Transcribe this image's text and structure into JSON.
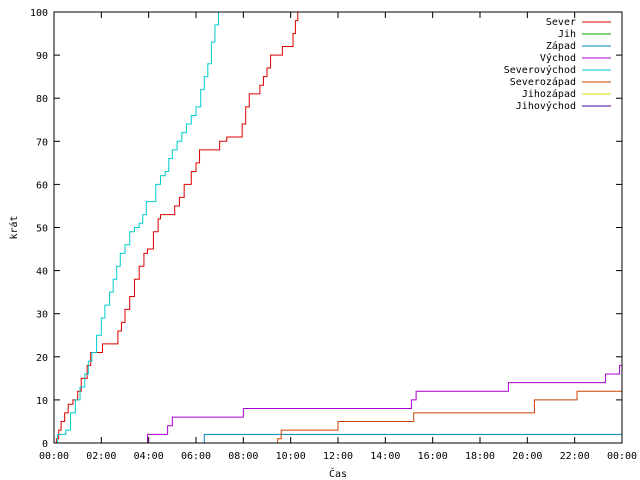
{
  "chart_data": {
    "type": "line",
    "title": "",
    "xlabel": "Čas",
    "ylabel": "krát",
    "xlim": [
      0,
      24
    ],
    "ylim": [
      0,
      100
    ],
    "grid": false,
    "legend_position": "top-right",
    "x_ticks": [
      0,
      2,
      4,
      6,
      8,
      10,
      12,
      14,
      16,
      18,
      20,
      22,
      24
    ],
    "x_tick_labels": [
      "00:00",
      "02:00",
      "04:00",
      "06:00",
      "08:00",
      "10:00",
      "12:00",
      "14:00",
      "16:00",
      "18:00",
      "20:00",
      "22:00",
      "00:00"
    ],
    "y_ticks": [
      0,
      10,
      20,
      30,
      40,
      50,
      60,
      70,
      80,
      90,
      100
    ],
    "y_tick_labels": [
      "0",
      "10",
      "20",
      "30",
      "40",
      "50",
      "60",
      "70",
      "80",
      "90",
      "100"
    ],
    "series": [
      {
        "name": "Sever",
        "color": "#dd0000",
        "points": [
          [
            0,
            0
          ],
          [
            0.1,
            1
          ],
          [
            0.2,
            3
          ],
          [
            0.3,
            5
          ],
          [
            0.45,
            7
          ],
          [
            0.6,
            9
          ],
          [
            0.8,
            10
          ],
          [
            1.0,
            12
          ],
          [
            1.15,
            15
          ],
          [
            1.4,
            18
          ],
          [
            1.55,
            21
          ],
          [
            2.0,
            21
          ],
          [
            2.05,
            23
          ],
          [
            2.6,
            23
          ],
          [
            2.7,
            26
          ],
          [
            2.85,
            28
          ],
          [
            3.0,
            31
          ],
          [
            3.2,
            34
          ],
          [
            3.4,
            38
          ],
          [
            3.6,
            41
          ],
          [
            3.8,
            44
          ],
          [
            3.95,
            45
          ],
          [
            4.2,
            49
          ],
          [
            4.4,
            52
          ],
          [
            4.5,
            53
          ],
          [
            5.0,
            53
          ],
          [
            5.1,
            55
          ],
          [
            5.3,
            57
          ],
          [
            5.5,
            60
          ],
          [
            5.8,
            63
          ],
          [
            6.0,
            65
          ],
          [
            6.15,
            68
          ],
          [
            6.9,
            68
          ],
          [
            7.0,
            70
          ],
          [
            7.3,
            71
          ],
          [
            7.8,
            71
          ],
          [
            7.95,
            74
          ],
          [
            8.1,
            78
          ],
          [
            8.25,
            81
          ],
          [
            8.6,
            81
          ],
          [
            8.7,
            83
          ],
          [
            8.85,
            85
          ],
          [
            9.0,
            87
          ],
          [
            9.15,
            90
          ],
          [
            9.6,
            90
          ],
          [
            9.65,
            92
          ],
          [
            10.0,
            92
          ],
          [
            10.1,
            95
          ],
          [
            10.2,
            98
          ],
          [
            10.3,
            100
          ]
        ]
      },
      {
        "name": "Jih",
        "color": "#00aa00",
        "points": []
      },
      {
        "name": "Západ",
        "color": "#0088bb",
        "points": [
          [
            0,
            0
          ],
          [
            6.35,
            0
          ],
          [
            6.35,
            2
          ],
          [
            24,
            2
          ]
        ]
      },
      {
        "name": "Východ",
        "color": "#aa00cc",
        "points": [
          [
            0,
            0
          ],
          [
            3.9,
            0
          ],
          [
            3.95,
            2
          ],
          [
            4.7,
            2
          ],
          [
            4.8,
            4
          ],
          [
            5.0,
            6
          ],
          [
            7.9,
            6
          ],
          [
            8.0,
            8
          ],
          [
            15.0,
            8
          ],
          [
            15.1,
            10
          ],
          [
            15.3,
            12
          ],
          [
            19.1,
            12
          ],
          [
            19.2,
            14
          ],
          [
            23.2,
            14
          ],
          [
            23.3,
            16
          ],
          [
            23.8,
            16
          ],
          [
            23.9,
            18
          ],
          [
            24,
            18
          ]
        ]
      },
      {
        "name": "Severovýchod",
        "color": "#00cccc",
        "points": [
          [
            0,
            0
          ],
          [
            0.15,
            2
          ],
          [
            0.5,
            3
          ],
          [
            0.7,
            7
          ],
          [
            0.9,
            10
          ],
          [
            1.1,
            13
          ],
          [
            1.3,
            16
          ],
          [
            1.45,
            19
          ],
          [
            1.6,
            21
          ],
          [
            1.8,
            25
          ],
          [
            2.0,
            29
          ],
          [
            2.15,
            32
          ],
          [
            2.35,
            35
          ],
          [
            2.5,
            38
          ],
          [
            2.65,
            41
          ],
          [
            2.8,
            44
          ],
          [
            3.0,
            46
          ],
          [
            3.2,
            49
          ],
          [
            3.4,
            50
          ],
          [
            3.6,
            51
          ],
          [
            3.75,
            53
          ],
          [
            3.9,
            56
          ],
          [
            4.1,
            56
          ],
          [
            4.3,
            60
          ],
          [
            4.5,
            62
          ],
          [
            4.7,
            63
          ],
          [
            4.85,
            66
          ],
          [
            5.0,
            68
          ],
          [
            5.2,
            70
          ],
          [
            5.4,
            72
          ],
          [
            5.6,
            74
          ],
          [
            5.8,
            76
          ],
          [
            6.0,
            78
          ],
          [
            6.2,
            82
          ],
          [
            6.35,
            85
          ],
          [
            6.5,
            88
          ],
          [
            6.65,
            93
          ],
          [
            6.8,
            97
          ],
          [
            6.95,
            100
          ]
        ]
      },
      {
        "name": "Severozápad",
        "color": "#cc4400",
        "points": [
          [
            0,
            0
          ],
          [
            9.45,
            0
          ],
          [
            9.45,
            1
          ],
          [
            9.6,
            3
          ],
          [
            11.9,
            3
          ],
          [
            12.0,
            5
          ],
          [
            15.0,
            5
          ],
          [
            15.2,
            7
          ],
          [
            20.2,
            7
          ],
          [
            20.3,
            10
          ],
          [
            22.0,
            10
          ],
          [
            22.1,
            12
          ],
          [
            24,
            12
          ]
        ]
      },
      {
        "name": "Jihozápad",
        "color": "#dddd00",
        "points": []
      },
      {
        "name": "Jihovýchod",
        "color": "#5500aa",
        "points": []
      }
    ]
  }
}
